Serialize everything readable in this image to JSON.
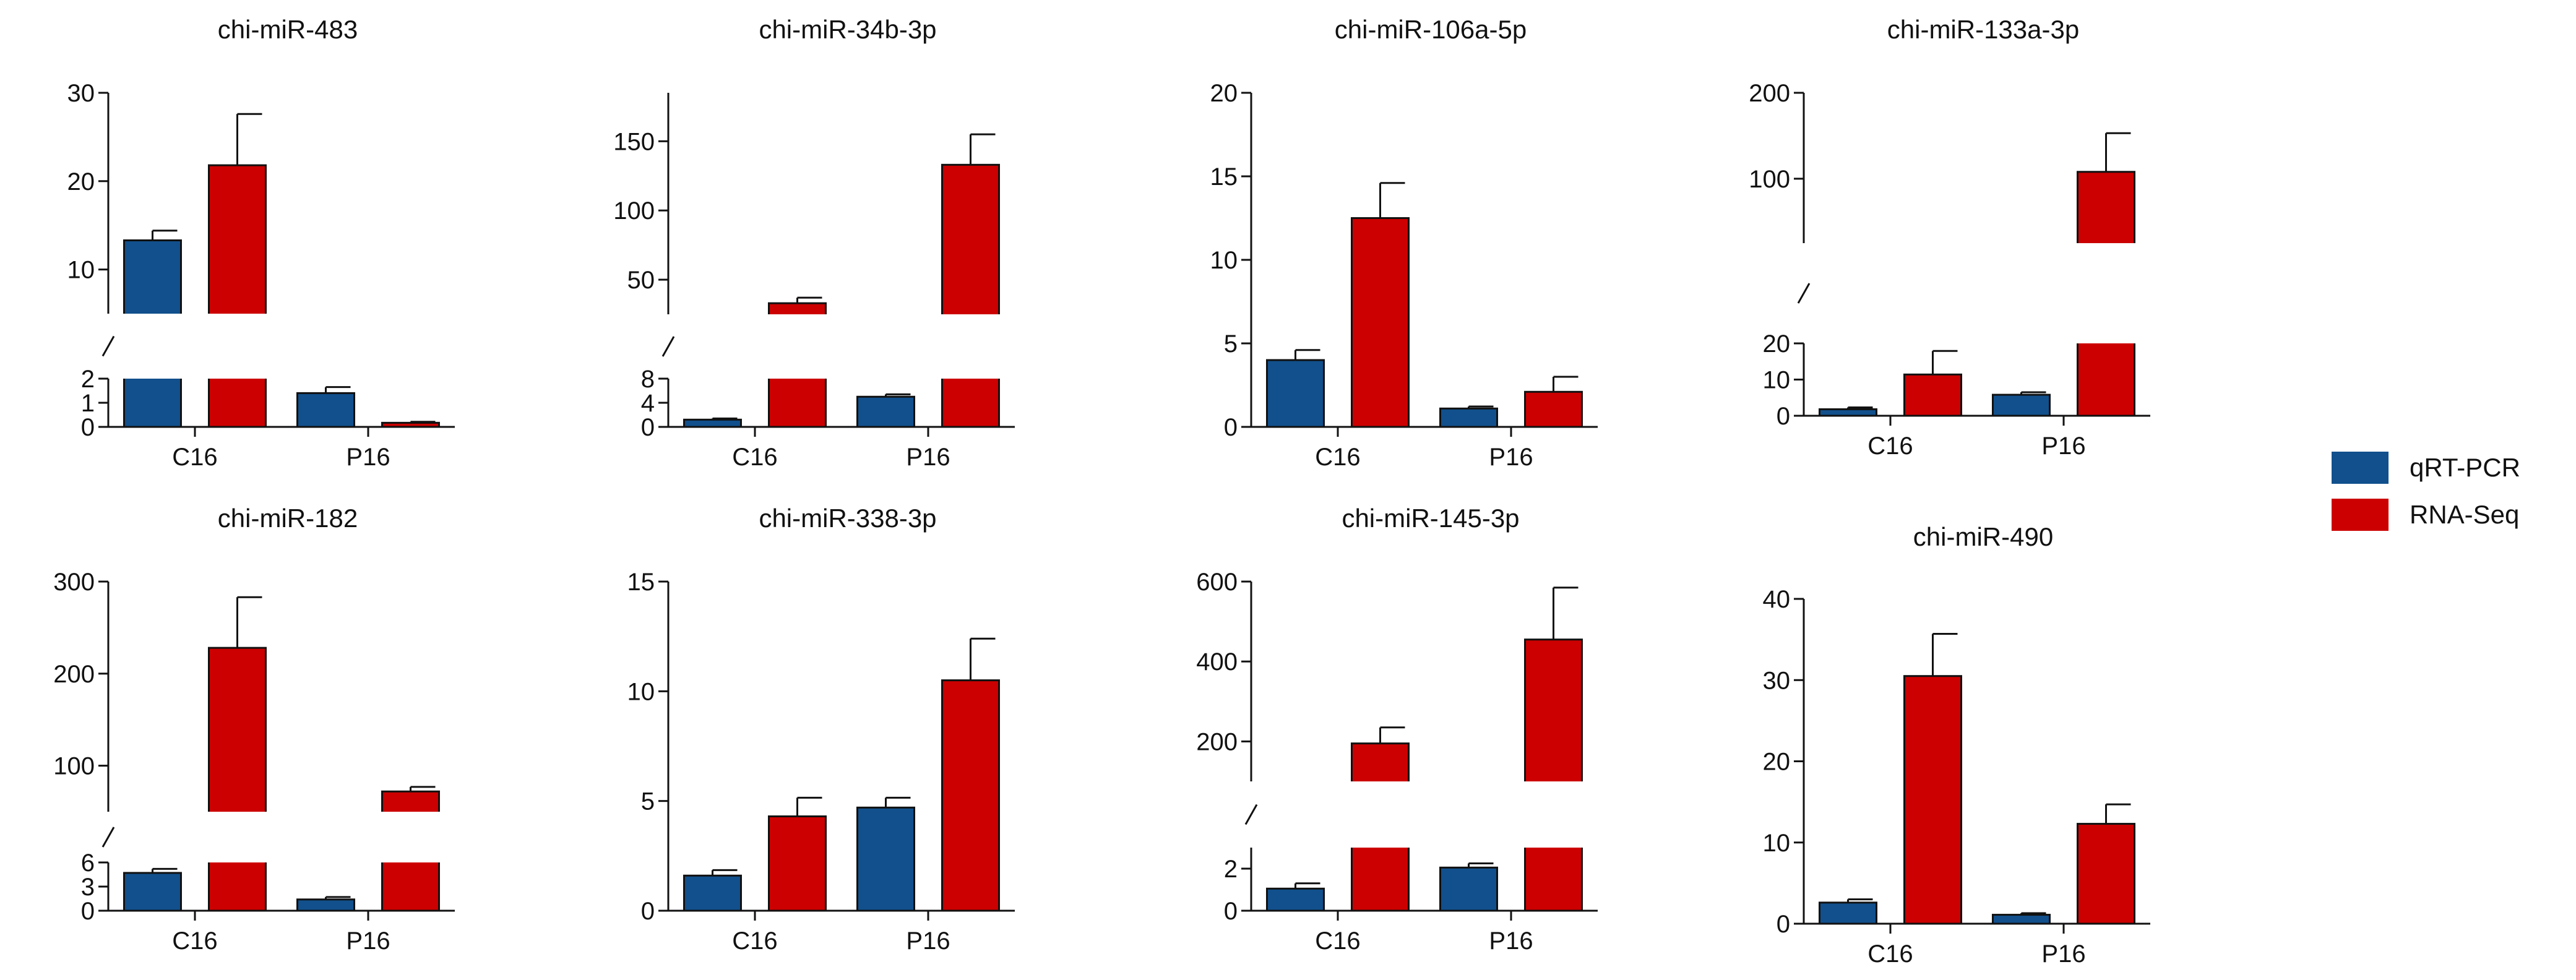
{
  "legend": {
    "items": [
      {
        "label": "qRT-PCR",
        "color": "#11508c"
      },
      {
        "label": "RNA-Seq",
        "color": "#cc0000"
      }
    ]
  },
  "chart_data": [
    {
      "type": "bar",
      "title": "chi-miR-483",
      "categories": [
        "C16",
        "P16"
      ],
      "series": [
        {
          "name": "qRT-PCR",
          "values": [
            13.3,
            1.4
          ],
          "errors": [
            1.1,
            0.25
          ]
        },
        {
          "name": "RNA-Seq",
          "values": [
            21.8,
            0.17
          ],
          "errors": [
            5.8,
            0.04
          ]
        }
      ],
      "axis_segments": [
        {
          "range": [
            0,
            2
          ],
          "ticks": [
            0,
            1,
            2
          ],
          "tick_labels": [
            "0",
            "1",
            "2"
          ]
        },
        {
          "range": [
            5,
            30
          ],
          "ticks": [
            10,
            20,
            30
          ],
          "tick_labels": [
            "10",
            "20",
            "30"
          ]
        }
      ]
    },
    {
      "type": "bar",
      "title": "chi-miR-34b-3p",
      "categories": [
        "C16",
        "P16"
      ],
      "series": [
        {
          "name": "qRT-PCR",
          "values": [
            1.2,
            5.0
          ],
          "errors": [
            0.2,
            0.4
          ]
        },
        {
          "name": "RNA-Seq",
          "values": [
            33,
            133
          ],
          "errors": [
            4,
            22
          ]
        }
      ],
      "axis_segments": [
        {
          "range": [
            0,
            8
          ],
          "ticks": [
            0,
            4,
            8
          ],
          "tick_labels": [
            "0",
            "4",
            "8"
          ]
        },
        {
          "range": [
            25,
            185
          ],
          "ticks": [
            50,
            100,
            150
          ],
          "tick_labels": [
            "50",
            "100",
            "150"
          ]
        }
      ]
    },
    {
      "type": "bar",
      "title": "chi-miR-106a-5p",
      "categories": [
        "C16",
        "P16"
      ],
      "series": [
        {
          "name": "qRT-PCR",
          "values": [
            4.0,
            1.1
          ],
          "errors": [
            0.6,
            0.12
          ]
        },
        {
          "name": "RNA-Seq",
          "values": [
            12.5,
            2.1
          ],
          "errors": [
            2.1,
            0.9
          ]
        }
      ],
      "axis_segments": [
        {
          "range": [
            0,
            20
          ],
          "ticks": [
            0,
            5,
            10,
            15,
            20
          ],
          "tick_labels": [
            "0",
            "5",
            "10",
            "15",
            "20"
          ]
        }
      ]
    },
    {
      "type": "bar",
      "title": "chi-miR-133a-3p",
      "categories": [
        "C16",
        "P16"
      ],
      "series": [
        {
          "name": "qRT-PCR",
          "values": [
            1.8,
            5.8
          ],
          "errors": [
            0.5,
            0.7
          ]
        },
        {
          "name": "RNA-Seq",
          "values": [
            11.4,
            108
          ],
          "errors": [
            6.5,
            45
          ]
        }
      ],
      "axis_segments": [
        {
          "range": [
            0,
            20
          ],
          "ticks": [
            0,
            10,
            20
          ],
          "tick_labels": [
            "0",
            "10",
            "20"
          ]
        },
        {
          "range": [
            25,
            200
          ],
          "ticks": [
            100,
            200
          ],
          "tick_labels": [
            "100",
            "200"
          ]
        }
      ]
    },
    {
      "type": "bar",
      "title": "chi-miR-182",
      "categories": [
        "C16",
        "P16"
      ],
      "series": [
        {
          "name": "qRT-PCR",
          "values": [
            4.7,
            1.4
          ],
          "errors": [
            0.5,
            0.3
          ]
        },
        {
          "name": "RNA-Seq",
          "values": [
            228,
            72
          ],
          "errors": [
            55,
            5
          ]
        }
      ],
      "axis_segments": [
        {
          "range": [
            0,
            6
          ],
          "ticks": [
            0,
            3,
            6
          ],
          "tick_labels": [
            "0",
            "3",
            "6"
          ]
        },
        {
          "range": [
            50,
            300
          ],
          "ticks": [
            100,
            200,
            300
          ],
          "tick_labels": [
            "100",
            "200",
            "300"
          ]
        }
      ]
    },
    {
      "type": "bar",
      "title": "chi-miR-338-3p",
      "categories": [
        "C16",
        "P16"
      ],
      "series": [
        {
          "name": "qRT-PCR",
          "values": [
            1.6,
            4.7
          ],
          "errors": [
            0.25,
            0.45
          ]
        },
        {
          "name": "RNA-Seq",
          "values": [
            4.3,
            10.5
          ],
          "errors": [
            0.85,
            1.9
          ]
        }
      ],
      "axis_segments": [
        {
          "range": [
            0,
            15
          ],
          "ticks": [
            0,
            5,
            10,
            15
          ],
          "tick_labels": [
            "0",
            "5",
            "10",
            "15"
          ]
        }
      ]
    },
    {
      "type": "bar",
      "title": "chi-miR-145-3p",
      "categories": [
        "C16",
        "P16"
      ],
      "series": [
        {
          "name": "qRT-PCR",
          "values": [
            1.05,
            2.05
          ],
          "errors": [
            0.25,
            0.2
          ]
        },
        {
          "name": "RNA-Seq",
          "values": [
            195,
            455
          ],
          "errors": [
            40,
            130
          ]
        }
      ],
      "axis_segments": [
        {
          "range": [
            0,
            3
          ],
          "ticks": [
            0,
            2
          ],
          "tick_labels": [
            "0",
            "2"
          ]
        },
        {
          "range": [
            100,
            600
          ],
          "ticks": [
            200,
            400,
            600
          ],
          "tick_labels": [
            "200",
            "400",
            "600"
          ]
        }
      ]
    },
    {
      "type": "bar",
      "title": "chi-miR-490",
      "categories": [
        "C16",
        "P16"
      ],
      "series": [
        {
          "name": "qRT-PCR",
          "values": [
            2.6,
            1.1
          ],
          "errors": [
            0.4,
            0.2
          ]
        },
        {
          "name": "RNA-Seq",
          "values": [
            30.5,
            12.3
          ],
          "errors": [
            5.2,
            2.4
          ]
        }
      ],
      "axis_segments": [
        {
          "range": [
            0,
            40
          ],
          "ticks": [
            0,
            10,
            20,
            30,
            40
          ],
          "tick_labels": [
            "0",
            "10",
            "20",
            "30",
            "40"
          ]
        }
      ]
    }
  ]
}
